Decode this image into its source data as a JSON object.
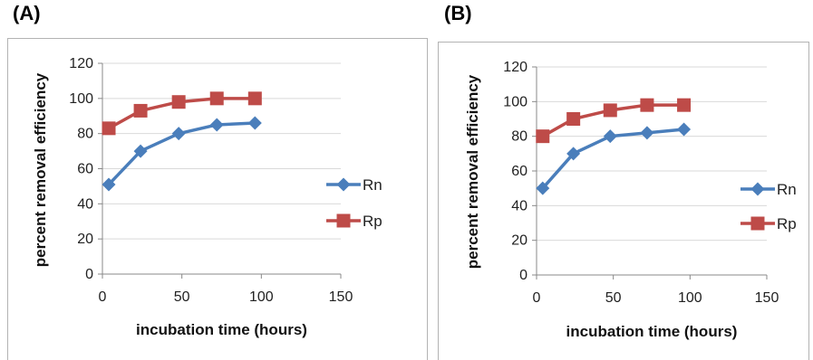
{
  "figure": {
    "panel_labels": [
      "(A)",
      "(B)"
    ]
  },
  "chart_data": [
    {
      "type": "line",
      "panel": "(A)",
      "xlabel": "incubation time (hours)",
      "ylabel": "percent removal efficiency",
      "xlim": [
        0,
        150
      ],
      "ylim": [
        0,
        120
      ],
      "x_ticks": [
        0,
        50,
        100,
        150
      ],
      "y_ticks": [
        0,
        20,
        40,
        60,
        80,
        100,
        120
      ],
      "grid": "horizontal",
      "legend_position": "right",
      "x": [
        4,
        24,
        48,
        72,
        96
      ],
      "series": [
        {
          "name": "Rn",
          "color": "#4a7ebb",
          "marker": "diamond",
          "values": [
            51,
            70,
            80,
            85,
            86
          ]
        },
        {
          "name": "Rp",
          "color": "#be4b48",
          "marker": "square",
          "values": [
            83,
            93,
            98,
            100,
            100
          ]
        }
      ]
    },
    {
      "type": "line",
      "panel": "(B)",
      "xlabel": "incubation time (hours)",
      "ylabel": "percent removal efficiency",
      "xlim": [
        0,
        150
      ],
      "ylim": [
        0,
        120
      ],
      "x_ticks": [
        0,
        50,
        100,
        150
      ],
      "y_ticks": [
        0,
        20,
        40,
        60,
        80,
        100,
        120
      ],
      "grid": "horizontal",
      "legend_position": "right",
      "x": [
        4,
        24,
        48,
        72,
        96
      ],
      "series": [
        {
          "name": "Rn",
          "color": "#4a7ebb",
          "marker": "diamond",
          "values": [
            50,
            70,
            80,
            82,
            84
          ]
        },
        {
          "name": "Rp",
          "color": "#be4b48",
          "marker": "square",
          "values": [
            80,
            90,
            95,
            98,
            98
          ]
        }
      ]
    }
  ]
}
